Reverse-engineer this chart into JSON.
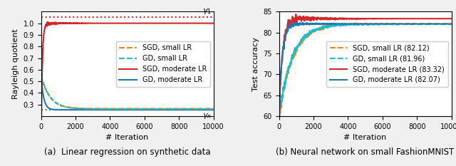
{
  "left_plot": {
    "xlabel": "# Iteration",
    "ylabel": "Rayleigh quotient",
    "xlim": [
      0,
      10000
    ],
    "ylim": [
      0.2,
      1.1
    ],
    "yticks": [
      0.3,
      0.4,
      0.5,
      0.6,
      0.7,
      0.8,
      0.9,
      1.0
    ],
    "xticks": [
      0,
      2000,
      4000,
      6000,
      8000,
      10000
    ],
    "gamma1": 1.05,
    "gamman": 0.255,
    "gamma_color": "#2ca02c",
    "gamma1_color": "#d62728",
    "caption": "(a)  Linear regression on synthetic data"
  },
  "right_plot": {
    "xlabel": "# Iteration",
    "ylabel": "Test accuracy",
    "xlim": [
      0,
      10000
    ],
    "ylim": [
      60,
      85
    ],
    "yticks": [
      60,
      65,
      70,
      75,
      80,
      85
    ],
    "xticks": [
      0,
      2000,
      4000,
      6000,
      8000,
      10000
    ],
    "caption": "(b) Neural network on small FashionMNIST"
  },
  "colors": {
    "sgd_small": "#ff7f0e",
    "gd_small": "#17becf",
    "sgd_mod": "#d62728",
    "gd_mod": "#1f77b4"
  },
  "figure_bg": "#f0f0f0"
}
